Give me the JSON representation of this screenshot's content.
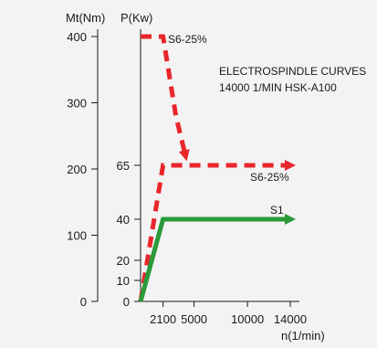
{
  "chart_data": {
    "type": "line",
    "title_lines": [
      "ELECTROSPINDLE CURVES",
      "14000 1/MIN HSK-A100"
    ],
    "left_axis": {
      "label": "Mt(Nm)",
      "ticks": [
        0,
        100,
        200,
        300,
        400
      ]
    },
    "power_axis": {
      "label": "P(Kw)",
      "ticks": [
        0,
        10,
        20,
        40,
        65
      ]
    },
    "x_axis": {
      "label": "n(1/min)",
      "ticks": [
        2100,
        5000,
        10000,
        14000
      ]
    },
    "series": [
      {
        "name": "S6-25%",
        "measure": "torque",
        "unit": "Nm",
        "color": "#e8262b",
        "dashed": true,
        "points": [
          [
            0,
            400
          ],
          [
            2100,
            400
          ],
          [
            3300,
            280
          ],
          [
            4200,
            220
          ]
        ]
      },
      {
        "name": "S6-25%",
        "measure": "power",
        "unit": "Kw",
        "color": "#e8262b",
        "dashed": true,
        "points": [
          [
            0,
            0
          ],
          [
            2100,
            65
          ],
          [
            14000,
            65
          ]
        ]
      },
      {
        "name": "S1",
        "measure": "power",
        "unit": "Kw",
        "color": "#2a9a3a",
        "dashed": false,
        "points": [
          [
            0,
            0
          ],
          [
            2100,
            40
          ],
          [
            14000,
            40
          ]
        ]
      }
    ]
  }
}
